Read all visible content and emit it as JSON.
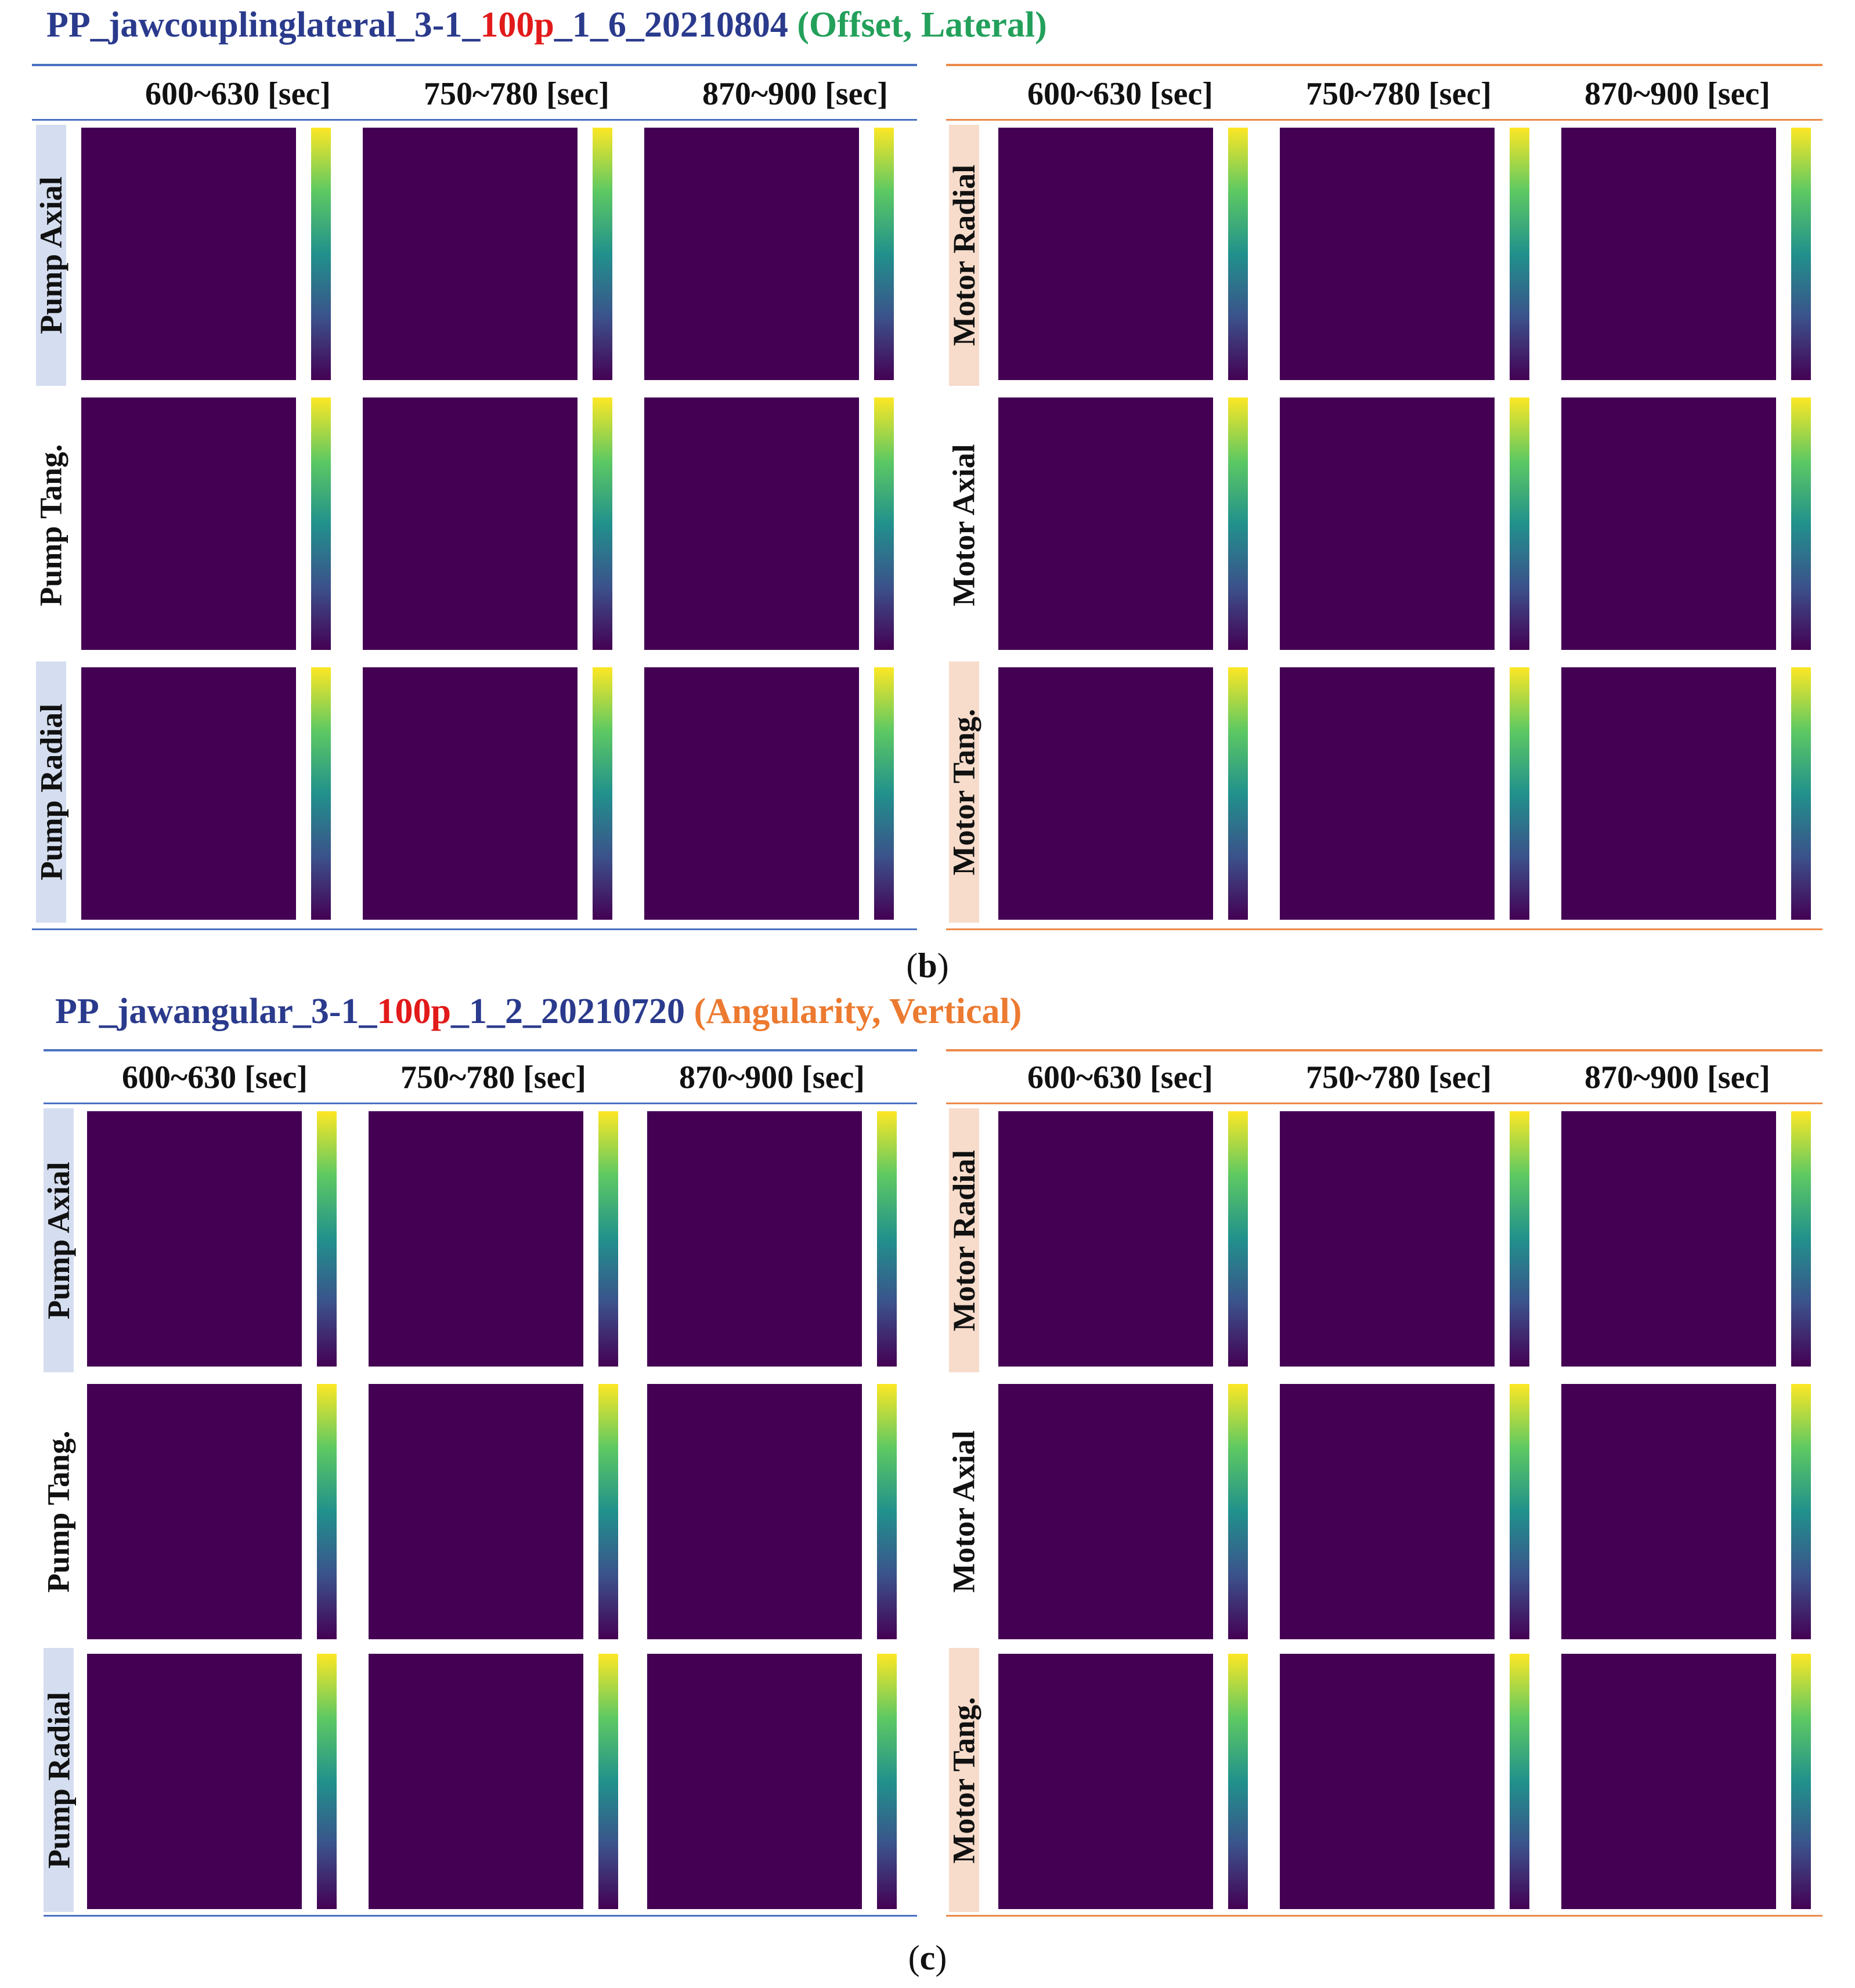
{
  "figure": {
    "section_b": {
      "title_prefix": "PP_jawcouplinglateral_3-1_",
      "title_red": "100p",
      "title_suffix": "_1_6_20210804 ",
      "title_tag": "(Offset, Lateral)",
      "caption_letter": "b",
      "col_labels": [
        "600~630 [sec]",
        "750~780 [sec]",
        "870~900 [sec]"
      ],
      "pump_rows": [
        "Pump Axial",
        "Pump Tang.",
        "Pump Radial"
      ],
      "motor_rows": [
        "Motor Radial",
        "Motor Axial",
        "Motor Tang."
      ]
    },
    "section_c": {
      "title_prefix": "PP_jawangular_3-1_",
      "title_red": "100p",
      "title_suffix": "_1_2_20210720 ",
      "title_tag": "(Angularity, Vertical)",
      "caption_letter": "c",
      "col_labels": [
        "600~630 [sec]",
        "750~780 [sec]",
        "870~900 [sec]"
      ],
      "pump_rows": [
        "Pump Axial",
        "Pump Tang.",
        "Pump Radial"
      ],
      "motor_rows": [
        "Motor Radial",
        "Motor Axial",
        "Motor Tang."
      ]
    }
  }
}
